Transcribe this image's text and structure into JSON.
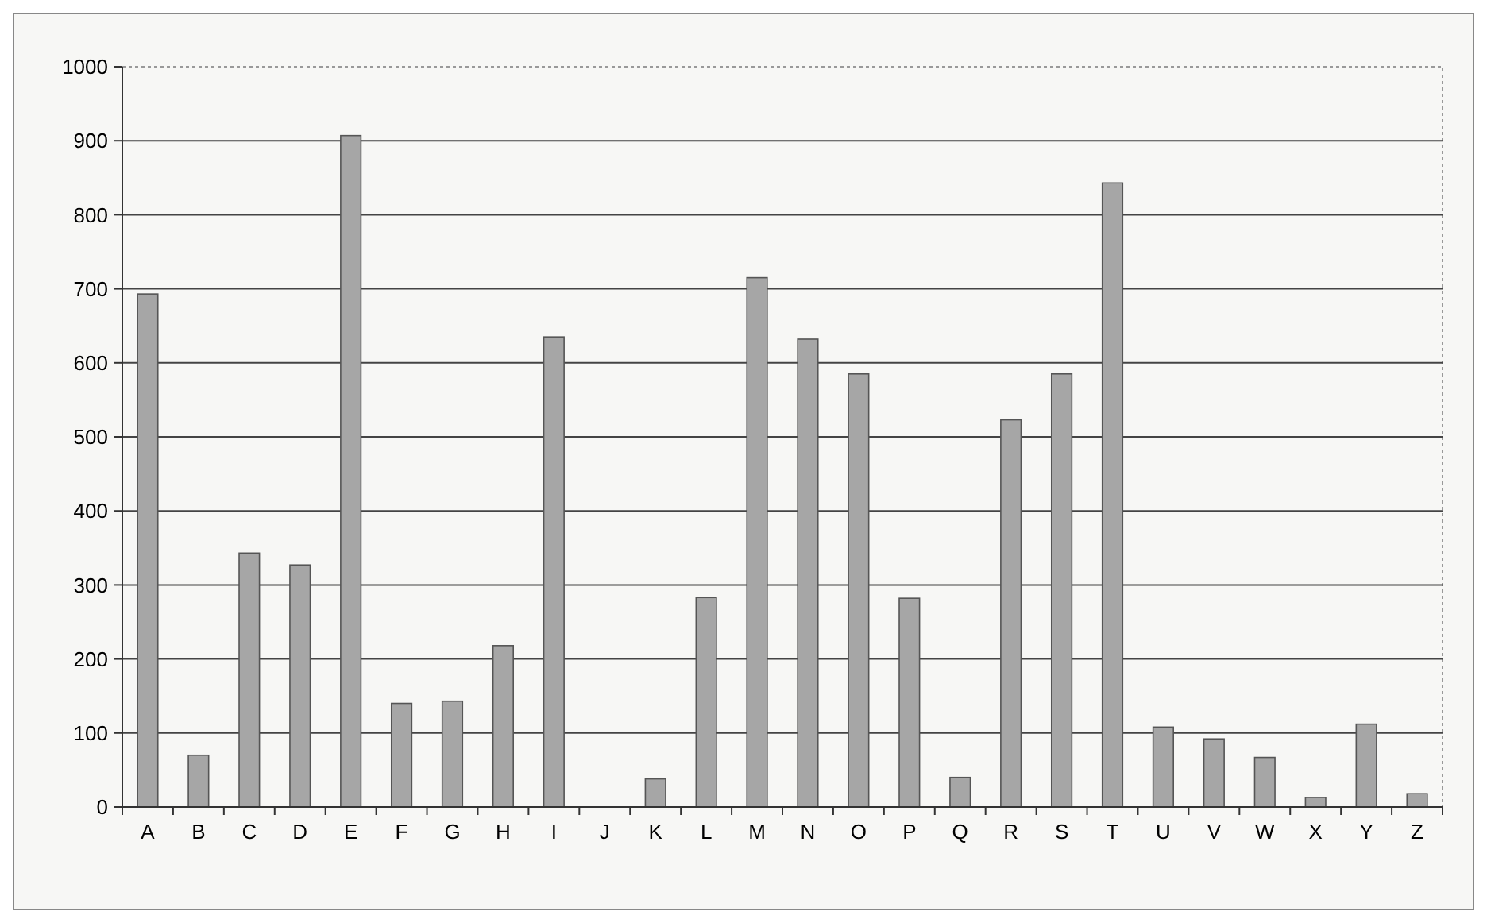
{
  "chart_data": {
    "type": "bar",
    "categories": [
      "A",
      "B",
      "C",
      "D",
      "E",
      "F",
      "G",
      "H",
      "I",
      "J",
      "K",
      "L",
      "M",
      "N",
      "O",
      "P",
      "Q",
      "R",
      "S",
      "T",
      "U",
      "V",
      "W",
      "X",
      "Y",
      "Z"
    ],
    "values": [
      693,
      70,
      343,
      327,
      907,
      140,
      143,
      218,
      635,
      0,
      38,
      283,
      715,
      632,
      585,
      282,
      40,
      523,
      585,
      843,
      108,
      92,
      67,
      13,
      112,
      18
    ],
    "color": "#a6a6a6",
    "ylim": [
      0,
      1000
    ],
    "yticks": [
      0,
      100,
      200,
      300,
      400,
      500,
      600,
      700,
      800,
      900,
      1000
    ],
    "grid": "y"
  }
}
